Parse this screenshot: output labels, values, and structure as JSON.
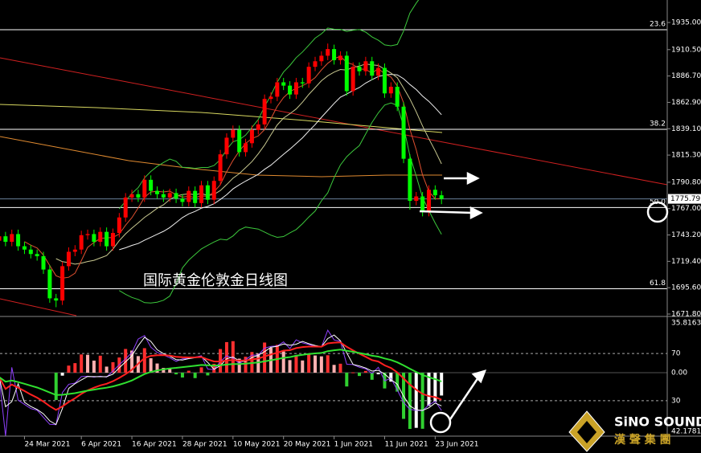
{
  "chart_data": {
    "type": "candlestick",
    "title": "国际黄金伦敦金日线图",
    "categories": [
      null,
      null,
      null,
      null,
      "24 Mar 2021",
      null,
      null,
      null,
      null,
      null,
      null,
      null,
      null,
      "6 Apr 2021",
      null,
      null,
      null,
      null,
      null,
      null,
      null,
      "16 Apr 2021",
      null,
      null,
      null,
      null,
      null,
      null,
      null,
      "28 Apr 2021",
      null,
      null,
      null,
      null,
      null,
      null,
      null,
      "10 May 2021",
      null,
      null,
      null,
      null,
      null,
      null,
      null,
      "20 May 2021",
      null,
      null,
      null,
      null,
      null,
      null,
      null,
      "1 Jun 2021",
      null,
      null,
      null,
      null,
      null,
      null,
      null,
      "11 Jun 2021",
      null,
      null,
      null,
      null,
      null,
      null,
      null,
      "23 Jun 2021",
      null
    ],
    "open": [
      1738,
      1742,
      1737,
      1744,
      1733,
      1730,
      1726,
      1724,
      1712,
      1686,
      1684,
      1715,
      1728,
      1730,
      1743,
      1744,
      1737,
      1746,
      1733,
      1745,
      1759,
      1777,
      1780,
      1777,
      1793,
      1783,
      1780,
      1777,
      1781,
      1776,
      1773,
      1783,
      1772,
      1788,
      1775,
      1792,
      1816,
      1831,
      1838,
      1818,
      1826,
      1838,
      1843,
      1866,
      1868,
      1881,
      1878,
      1870,
      1881,
      1880,
      1895,
      1900,
      1905,
      1911,
      1901,
      1905,
      1873,
      1895,
      1891,
      1900,
      1887,
      1894,
      1871,
      1877,
      1859,
      1812,
      1774,
      1778,
      1764,
      1784,
      1779
    ],
    "high": [
      1746,
      1746,
      1748,
      1748,
      1737,
      1734,
      1730,
      1728,
      1716,
      1690,
      1719,
      1732,
      1734,
      1747,
      1748,
      1748,
      1750,
      1750,
      1749,
      1763,
      1781,
      1784,
      1784,
      1797,
      1797,
      1787,
      1784,
      1785,
      1785,
      1780,
      1787,
      1787,
      1792,
      1792,
      1796,
      1820,
      1835,
      1842,
      1842,
      1830,
      1842,
      1847,
      1870,
      1872,
      1885,
      1885,
      1882,
      1885,
      1885,
      1899,
      1904,
      1909,
      1916,
      1915,
      1909,
      1909,
      1899,
      1899,
      1904,
      1904,
      1898,
      1898,
      1881,
      1881,
      1863,
      1816,
      1782,
      1782,
      1788,
      1788,
      1783
    ],
    "low": [
      1734,
      1733,
      1733,
      1729,
      1726,
      1722,
      1720,
      1708,
      1682,
      1678,
      1680,
      1711,
      1724,
      1726,
      1739,
      1733,
      1733,
      1729,
      1729,
      1741,
      1755,
      1773,
      1773,
      1773,
      1779,
      1776,
      1773,
      1773,
      1772,
      1769,
      1769,
      1768,
      1768,
      1771,
      1771,
      1788,
      1812,
      1827,
      1814,
      1814,
      1822,
      1834,
      1839,
      1862,
      1864,
      1874,
      1866,
      1866,
      1876,
      1876,
      1891,
      1896,
      1901,
      1897,
      1897,
      1869,
      1869,
      1887,
      1887,
      1883,
      1883,
      1867,
      1867,
      1855,
      1808,
      1766,
      1770,
      1760,
      1760,
      1775,
      1771
    ],
    "close": [
      1742,
      1737,
      1744,
      1733,
      1730,
      1726,
      1724,
      1712,
      1686,
      1684,
      1715,
      1728,
      1730,
      1743,
      1744,
      1737,
      1746,
      1733,
      1745,
      1759,
      1777,
      1780,
      1777,
      1793,
      1783,
      1780,
      1777,
      1781,
      1776,
      1773,
      1783,
      1772,
      1788,
      1775,
      1792,
      1816,
      1831,
      1838,
      1818,
      1826,
      1838,
      1843,
      1866,
      1868,
      1881,
      1878,
      1870,
      1881,
      1880,
      1895,
      1900,
      1905,
      1911,
      1901,
      1905,
      1873,
      1895,
      1891,
      1900,
      1887,
      1894,
      1871,
      1877,
      1859,
      1812,
      1774,
      1778,
      1764,
      1784,
      1779,
      1775.79
    ],
    "up_color": "#ff0000",
    "down_color": "#00ff00",
    "ylim": [
      1670.35,
      1955.3
    ],
    "yticks": [
      {
        "value": 1935,
        "label": "1935.00"
      },
      {
        "value": 1910.5,
        "label": "1910.50"
      },
      {
        "value": 1886.7,
        "label": "1886.70"
      },
      {
        "value": 1862.9,
        "label": "1862.90"
      },
      {
        "value": 1839.1,
        "label": "1839.10"
      },
      {
        "value": 1815.3,
        "label": "1815.30"
      },
      {
        "value": 1790.8,
        "label": "1790.80"
      },
      {
        "value": 1767,
        "label": "1767.00"
      },
      {
        "value": 1743.2,
        "label": "1743.20"
      },
      {
        "value": 1719.4,
        "label": "1719.40"
      },
      {
        "value": 1695.6,
        "label": "1695.60"
      },
      {
        "value": 1671.8,
        "label": "1671.80"
      }
    ],
    "current_price": {
      "value": 1775.79,
      "label": "1775.79"
    },
    "fib_levels": [
      {
        "value": 1928.5,
        "label": "23.6"
      },
      {
        "value": 1838.6,
        "label": "38.2"
      },
      {
        "value": 1768,
        "label": "50.0"
      },
      {
        "value": 1694.6,
        "label": "61.8"
      }
    ],
    "indicator": {
      "ylim": [
        0,
        100
      ],
      "yticks": [
        70,
        30
      ],
      "readouts": [
        "35.8163",
        "0.00",
        "42.1781"
      ]
    }
  },
  "logo": {
    "name": "SiNO SOUND",
    "subtitle": "漢 聲 集 團"
  }
}
